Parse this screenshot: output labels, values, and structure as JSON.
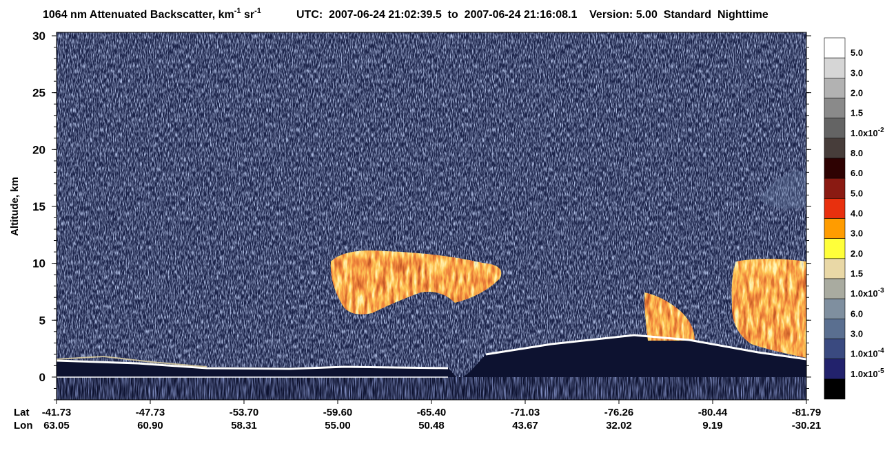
{
  "chart_data": {
    "type": "heatmap",
    "title": [
      {
        "text": "1064 nm Attenuated Backscatter, km"
      },
      {
        "sup": "-1"
      },
      {
        "text": " sr"
      },
      {
        "sup": "-1"
      }
    ],
    "header_info": "UTC:  2007-06-24 21:02:39.5  to  2007-06-24 21:16:08.1    Version: 5.00  Standard  Nighttime",
    "ylabel": "Altitude, km",
    "ylim": [
      -2,
      30
    ],
    "yticks": [
      0,
      5,
      10,
      15,
      20,
      25,
      30
    ],
    "x_rows": [
      "Lat",
      "Lon"
    ],
    "lat_labels": [
      "-41.73",
      "-47.73",
      "-53.70",
      "-59.60",
      "-65.40",
      "-71.03",
      "-76.26",
      "-80.44",
      "-81.79"
    ],
    "lon_labels": [
      "63.05",
      "60.90",
      "58.31",
      "55.00",
      "50.48",
      "43.67",
      "32.02",
      "9.19",
      "-30.21"
    ],
    "colorbar": {
      "colors": [
        "#ffffff",
        "#d6d6d6",
        "#b2b2b2",
        "#8a8a8a",
        "#646464",
        "#473d3a",
        "#2e0202",
        "#8a1a12",
        "#e8300e",
        "#ff9c00",
        "#ffff3a",
        "#e9d8a6",
        "#a9aba0",
        "#7f8f9f",
        "#5a6f90",
        "#3a4a80",
        "#22226c",
        "#000000"
      ],
      "labels": [
        {
          "text": "5.0"
        },
        {
          "text": "3.0"
        },
        {
          "text": "2.0"
        },
        {
          "text": "1.5"
        },
        {
          "text": "1.0x10",
          "sup": "-2"
        },
        {
          "text": "8.0"
        },
        {
          "text": "6.0"
        },
        {
          "text": "5.0"
        },
        {
          "text": "4.0"
        },
        {
          "text": "3.0"
        },
        {
          "text": "2.0"
        },
        {
          "text": "1.5"
        },
        {
          "text": "1.0x10",
          "sup": "-3"
        },
        {
          "text": "6.0"
        },
        {
          "text": "3.0"
        },
        {
          "text": "1.0x10",
          "sup": "-4"
        },
        {
          "text": "1.0x10",
          "sup": "-5"
        }
      ]
    }
  }
}
